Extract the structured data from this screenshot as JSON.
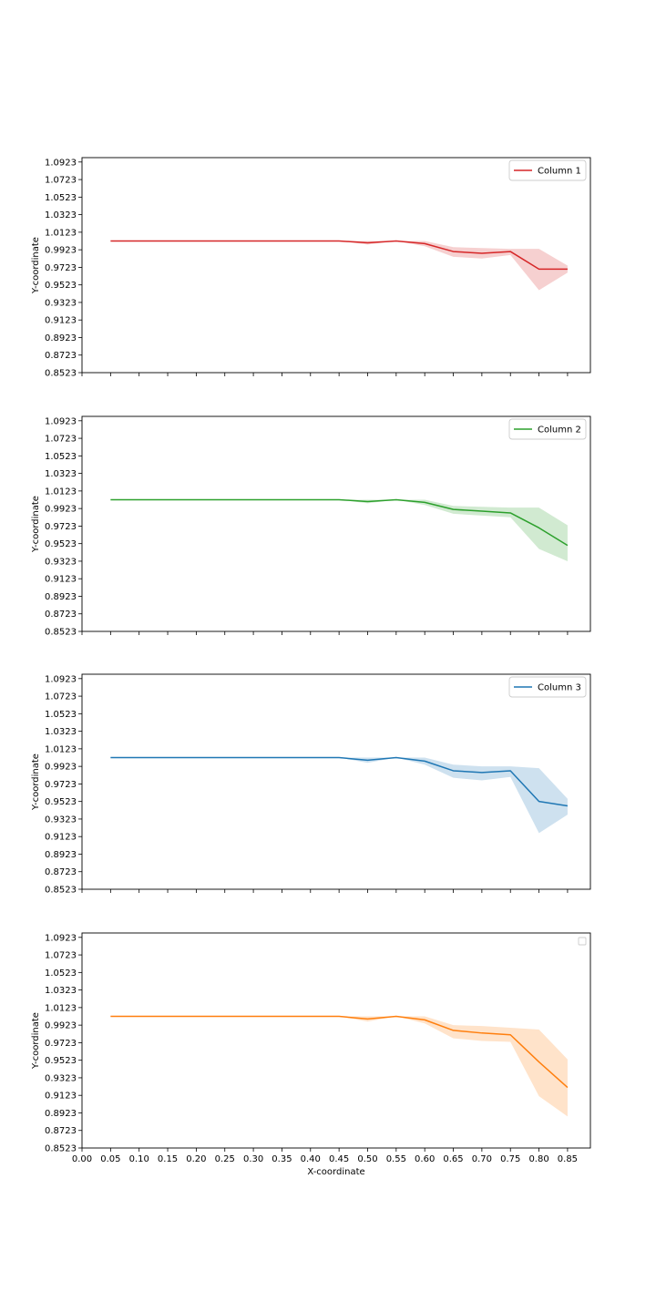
{
  "chart_data": [
    {
      "type": "line",
      "ylabel": "Y-coordinate",
      "xlabel": "",
      "xlim": [
        0.0,
        0.89
      ],
      "ylim": [
        0.8523,
        1.0973
      ],
      "xticks": [
        0.0,
        0.05,
        0.1,
        0.15,
        0.2,
        0.25,
        0.3,
        0.35,
        0.4,
        0.45,
        0.5,
        0.55,
        0.6,
        0.65,
        0.7,
        0.75,
        0.8,
        0.85
      ],
      "xtick_labels_visible": false,
      "yticks": [
        "1.0923",
        "1.0723",
        "1.0523",
        "1.0323",
        "1.0123",
        "0.9923",
        "0.9723",
        "0.9523",
        "0.9323",
        "0.9123",
        "0.8923",
        "0.8723",
        "0.8523"
      ],
      "legend_position": "upper right",
      "series": [
        {
          "name": "Column 1",
          "color": "#d62728",
          "x": [
            0.05,
            0.1,
            0.15,
            0.2,
            0.25,
            0.3,
            0.35,
            0.4,
            0.45,
            0.5,
            0.55,
            0.6,
            0.65,
            0.7,
            0.75,
            0.8,
            0.85
          ],
          "y": [
            1.0023,
            1.0023,
            1.0023,
            1.0023,
            1.0023,
            1.0023,
            1.0023,
            1.0023,
            1.0023,
            1.0003,
            1.0023,
            0.9993,
            0.9903,
            0.9883,
            0.9903,
            0.9703,
            0.9703
          ],
          "y_lower": [
            1.0023,
            1.0023,
            1.0023,
            1.0023,
            1.0023,
            1.0023,
            1.0023,
            1.0023,
            1.0023,
            0.9983,
            1.0023,
            0.9963,
            0.9843,
            0.9823,
            0.9863,
            0.9463,
            0.9663
          ],
          "y_upper": [
            1.0023,
            1.0023,
            1.0023,
            1.0023,
            1.0023,
            1.0023,
            1.0023,
            1.0023,
            1.0023,
            1.0023,
            1.0023,
            1.0023,
            0.9953,
            0.9943,
            0.9933,
            0.9933,
            0.9743
          ]
        }
      ]
    },
    {
      "type": "line",
      "ylabel": "Y-coordinate",
      "xlabel": "",
      "xlim": [
        0.0,
        0.89
      ],
      "ylim": [
        0.8523,
        1.0973
      ],
      "xticks": [
        0.0,
        0.05,
        0.1,
        0.15,
        0.2,
        0.25,
        0.3,
        0.35,
        0.4,
        0.45,
        0.5,
        0.55,
        0.6,
        0.65,
        0.7,
        0.75,
        0.8,
        0.85
      ],
      "xtick_labels_visible": false,
      "yticks": [
        "1.0923",
        "1.0723",
        "1.0523",
        "1.0323",
        "1.0123",
        "0.9923",
        "0.9723",
        "0.9523",
        "0.9323",
        "0.9123",
        "0.8923",
        "0.8723",
        "0.8523"
      ],
      "legend_position": "upper right",
      "series": [
        {
          "name": "Column 2",
          "color": "#2ca02c",
          "x": [
            0.05,
            0.1,
            0.15,
            0.2,
            0.25,
            0.3,
            0.35,
            0.4,
            0.45,
            0.5,
            0.55,
            0.6,
            0.65,
            0.7,
            0.75,
            0.8,
            0.85
          ],
          "y": [
            1.0023,
            1.0023,
            1.0023,
            1.0023,
            1.0023,
            1.0023,
            1.0023,
            1.0023,
            1.0023,
            1.0003,
            1.0023,
            0.9993,
            0.9913,
            0.9893,
            0.9873,
            0.9703,
            0.9503
          ],
          "y_lower": [
            1.0023,
            1.0023,
            1.0023,
            1.0023,
            1.0023,
            1.0023,
            1.0023,
            1.0023,
            1.0023,
            0.9983,
            1.0023,
            0.9963,
            0.9863,
            0.9843,
            0.9823,
            0.9463,
            0.9323
          ],
          "y_upper": [
            1.0023,
            1.0023,
            1.0023,
            1.0023,
            1.0023,
            1.0023,
            1.0023,
            1.0023,
            1.0023,
            1.0023,
            1.0023,
            1.0023,
            0.9953,
            0.9943,
            0.9933,
            0.9933,
            0.9733
          ]
        }
      ]
    },
    {
      "type": "line",
      "ylabel": "Y-coordinate",
      "xlabel": "",
      "xlim": [
        0.0,
        0.89
      ],
      "ylim": [
        0.8523,
        1.0973
      ],
      "xticks": [
        0.0,
        0.05,
        0.1,
        0.15,
        0.2,
        0.25,
        0.3,
        0.35,
        0.4,
        0.45,
        0.5,
        0.55,
        0.6,
        0.65,
        0.7,
        0.75,
        0.8,
        0.85
      ],
      "xtick_labels_visible": false,
      "yticks": [
        "1.0923",
        "1.0723",
        "1.0523",
        "1.0323",
        "1.0123",
        "0.9923",
        "0.9723",
        "0.9523",
        "0.9323",
        "0.9123",
        "0.8923",
        "0.8723",
        "0.8523"
      ],
      "legend_position": "upper right",
      "series": [
        {
          "name": "Column 3",
          "color": "#1f77b4",
          "x": [
            0.05,
            0.1,
            0.15,
            0.2,
            0.25,
            0.3,
            0.35,
            0.4,
            0.45,
            0.5,
            0.55,
            0.6,
            0.65,
            0.7,
            0.75,
            0.8,
            0.85
          ],
          "y": [
            1.0023,
            1.0023,
            1.0023,
            1.0023,
            1.0023,
            1.0023,
            1.0023,
            1.0023,
            1.0023,
            0.9993,
            1.0023,
            0.9983,
            0.9873,
            0.9853,
            0.9873,
            0.9523,
            0.9473
          ],
          "y_lower": [
            1.0023,
            1.0023,
            1.0023,
            1.0023,
            1.0023,
            1.0023,
            1.0023,
            1.0023,
            1.0023,
            0.9963,
            1.0023,
            0.9943,
            0.9793,
            0.9763,
            0.9803,
            0.9163,
            0.9373
          ],
          "y_upper": [
            1.0023,
            1.0023,
            1.0023,
            1.0023,
            1.0023,
            1.0023,
            1.0023,
            1.0023,
            1.0023,
            1.0023,
            1.0023,
            1.0023,
            0.9943,
            0.9923,
            0.9923,
            0.9903,
            0.9553
          ]
        }
      ]
    },
    {
      "type": "line",
      "ylabel": "Y-coordinate",
      "xlabel": "X-coordinate",
      "xlim": [
        0.0,
        0.89
      ],
      "ylim": [
        0.8523,
        1.0973
      ],
      "xticks": [
        0.0,
        0.05,
        0.1,
        0.15,
        0.2,
        0.25,
        0.3,
        0.35,
        0.4,
        0.45,
        0.5,
        0.55,
        0.6,
        0.65,
        0.7,
        0.75,
        0.8,
        0.85
      ],
      "xtick_labels": [
        "0.00",
        "0.05",
        "0.10",
        "0.15",
        "0.20",
        "0.25",
        "0.30",
        "0.35",
        "0.40",
        "0.45",
        "0.50",
        "0.55",
        "0.60",
        "0.65",
        "0.70",
        "0.75",
        "0.80",
        "0.85"
      ],
      "xtick_labels_visible": true,
      "yticks": [
        "1.0923",
        "1.0723",
        "1.0523",
        "1.0323",
        "1.0123",
        "0.9923",
        "0.9723",
        "0.9523",
        "0.9323",
        "0.9123",
        "0.8923",
        "0.8723",
        "0.8523"
      ],
      "legend_position": "upper right",
      "legend_empty": true,
      "series": [
        {
          "color": "#ff7f0e",
          "x": [
            0.05,
            0.1,
            0.15,
            0.2,
            0.25,
            0.3,
            0.35,
            0.4,
            0.45,
            0.5,
            0.55,
            0.6,
            0.65,
            0.7,
            0.75,
            0.8,
            0.85
          ],
          "y": [
            1.0023,
            1.0023,
            1.0023,
            1.0023,
            1.0023,
            1.0023,
            1.0023,
            1.0023,
            1.0023,
            0.9993,
            1.0023,
            0.9983,
            0.9863,
            0.9833,
            0.9813,
            0.9503,
            0.9213
          ],
          "y_lower": [
            1.0023,
            1.0023,
            1.0023,
            1.0023,
            1.0023,
            1.0023,
            1.0023,
            1.0023,
            1.0023,
            0.9963,
            1.0023,
            0.9943,
            0.9773,
            0.9743,
            0.9733,
            0.9113,
            0.8883
          ],
          "y_upper": [
            1.0023,
            1.0023,
            1.0023,
            1.0023,
            1.0023,
            1.0023,
            1.0023,
            1.0023,
            1.0023,
            1.0023,
            1.0023,
            1.0023,
            0.9923,
            0.9913,
            0.9893,
            0.9873,
            0.9533
          ]
        }
      ]
    }
  ]
}
